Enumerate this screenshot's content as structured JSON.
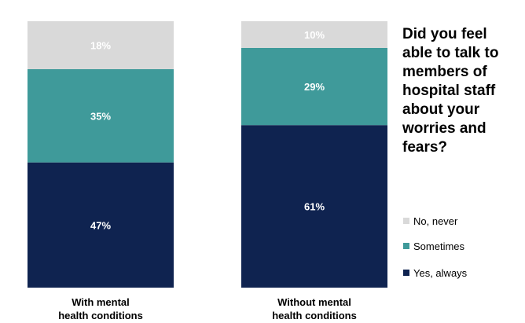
{
  "chart_data": {
    "type": "bar",
    "stacked": true,
    "title": "Did you feel able to talk to members of hospital staff about your worries and fears?",
    "categories": [
      [
        "With mental",
        "health conditions"
      ],
      [
        "Without mental",
        "health conditions"
      ]
    ],
    "series": [
      {
        "name": "Yes, always",
        "color": "#0f2350",
        "values": [
          47,
          61
        ],
        "labels": [
          "47%",
          "61%"
        ]
      },
      {
        "name": "Sometimes",
        "color": "#3f9a9a",
        "values": [
          35,
          29
        ],
        "labels": [
          "35%",
          "29%"
        ]
      },
      {
        "name": "No, never",
        "color": "#d9d9d9",
        "values": [
          18,
          10
        ],
        "labels": [
          "18%",
          "10%"
        ]
      }
    ],
    "legend_order": [
      "No, never",
      "Sometimes",
      "Yes, always"
    ],
    "legend_position": "right",
    "ylim": [
      0,
      100
    ],
    "grid": false
  }
}
